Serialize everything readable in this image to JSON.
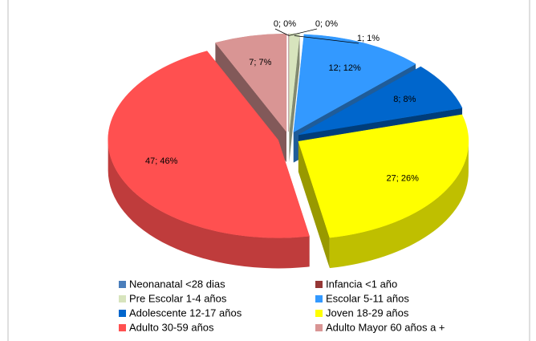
{
  "chart_data": {
    "type": "pie3d",
    "categories": [
      "Neonanatal <28  dias",
      "Infancia  <1 año",
      "Pre Escolar 1-4 años",
      "Escolar 5-11 años",
      "Adolescente 12-17 años",
      "Joven 18-29 años",
      "Adulto 30-59 años",
      "Adulto Mayor 60 años  a +"
    ],
    "values": [
      0,
      0,
      1,
      12,
      8,
      27,
      47,
      7
    ],
    "value_labels": [
      "0; 0%",
      "0; 0%",
      "1; 1%",
      "12; 12%",
      "8; 8%",
      "27; 26%",
      "47; 46%",
      "7; 7%"
    ],
    "colors": [
      "#4a7ebb",
      "#953735",
      "#d7e4bd",
      "#3399ff",
      "#0066cc",
      "#ffff00",
      "#ff5050",
      "#d99594"
    ],
    "legend": "bottom"
  }
}
